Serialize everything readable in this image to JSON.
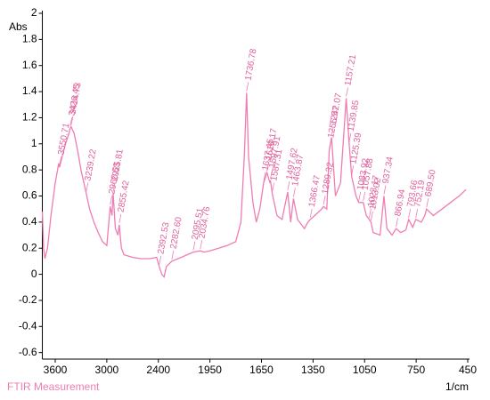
{
  "chart_data": {
    "type": "line",
    "title": "FTIR Measurement",
    "ylabel": "Abs",
    "xlabel": "1/cm",
    "color": "#f07cb4",
    "xlim": [
      3750,
      450
    ],
    "xticks": [
      3600,
      3000,
      2400,
      1950,
      1650,
      1350,
      1050,
      750,
      450
    ],
    "ylim": [
      -0.65,
      2
    ],
    "yticks": [
      -0.6,
      -0.4,
      -0.2,
      0,
      0.2,
      0.4,
      0.6,
      0.8,
      1,
      1.2,
      1.4,
      1.6,
      1.8,
      2
    ],
    "x": [
      3750,
      3735,
      3720,
      3690,
      3650,
      3600,
      3560,
      3550.71,
      3520,
      3480,
      3440,
      3426.45,
      3414.73,
      3380,
      3340,
      3300,
      3239.22,
      3200,
      3150,
      3100,
      3050,
      3000,
      2960.53,
      2940,
      2925.81,
      2900,
      2870,
      2855.42,
      2830,
      2800,
      2700,
      2600,
      2500,
      2420,
      2392.53,
      2370,
      2350,
      2330,
      2282.6,
      2200,
      2095.51,
      2034.76,
      2000,
      1950,
      1900,
      1850,
      1800,
      1770,
      1750,
      1736.78,
      1725,
      1700,
      1680,
      1660,
      1637.45,
      1618.17,
      1600,
      1597.91,
      1587.31,
      1560,
      1530,
      1510,
      1497.62,
      1480,
      1463.87,
      1440,
      1400,
      1380,
      1366.47,
      1340,
      1300,
      1289.32,
      1270,
      1255.57,
      1242.07,
      1220,
      1190,
      1157.21,
      1139.85,
      1125.39,
      1100,
      1083.92,
      1057.88,
      1040,
      1023.17,
      1013.02,
      1000,
      960,
      937.34,
      920,
      890,
      866.94,
      840,
      810,
      793.66,
      770,
      752.19,
      720,
      700,
      689.5,
      650,
      600,
      550,
      500,
      460
    ],
    "values": [
      0.48,
      0.2,
      0.12,
      0.2,
      0.45,
      0.7,
      0.85,
      0.82,
      0.9,
      1.0,
      1.08,
      1.12,
      1.13,
      1.08,
      0.95,
      0.8,
      0.62,
      0.5,
      0.4,
      0.32,
      0.25,
      0.22,
      0.52,
      0.45,
      0.62,
      0.35,
      0.3,
      0.38,
      0.2,
      0.15,
      0.13,
      0.12,
      0.12,
      0.13,
      0.06,
      0.0,
      -0.02,
      0.06,
      0.1,
      0.13,
      0.17,
      0.18,
      0.17,
      0.18,
      0.2,
      0.22,
      0.25,
      0.4,
      0.9,
      1.39,
      0.9,
      0.55,
      0.4,
      0.5,
      0.7,
      0.78,
      0.7,
      0.72,
      0.62,
      0.45,
      0.42,
      0.55,
      0.63,
      0.4,
      0.58,
      0.42,
      0.35,
      0.4,
      0.42,
      0.45,
      0.5,
      0.52,
      0.5,
      0.95,
      1.05,
      0.6,
      0.7,
      1.35,
      1.0,
      0.75,
      0.6,
      0.55,
      0.55,
      0.45,
      0.42,
      0.4,
      0.32,
      0.3,
      0.6,
      0.35,
      0.3,
      0.35,
      0.32,
      0.34,
      0.42,
      0.36,
      0.42,
      0.4,
      0.45,
      0.5,
      0.45,
      0.5,
      0.55,
      0.6,
      0.65
    ],
    "peaks": [
      3550.71,
      3426.45,
      3414.73,
      3239.22,
      2960.53,
      2925.81,
      2855.42,
      2392.53,
      {
        "value": 2282.6,
        "label": "2282.60"
      },
      2095.51,
      2034.76,
      1736.78,
      1637.45,
      1618.17,
      1597.91,
      1587.31,
      1497.62,
      1463.87,
      1366.47,
      1289.32,
      1255.57,
      1242.07,
      1157.21,
      1139.85,
      1125.39,
      1083.92,
      1057.88,
      1023.17,
      1013.02,
      937.34,
      866.94,
      793.66,
      752.19,
      {
        "value": 689.5,
        "label": "689.50"
      }
    ],
    "peak_abs": [
      0.82,
      1.12,
      1.13,
      0.62,
      0.52,
      0.62,
      0.38,
      0.06,
      0.1,
      0.17,
      0.18,
      1.39,
      0.7,
      0.78,
      0.72,
      0.62,
      0.63,
      0.58,
      0.42,
      0.52,
      0.95,
      1.05,
      1.35,
      1.0,
      0.75,
      0.55,
      0.55,
      0.42,
      0.4,
      0.6,
      0.35,
      0.42,
      0.42,
      0.5
    ]
  }
}
